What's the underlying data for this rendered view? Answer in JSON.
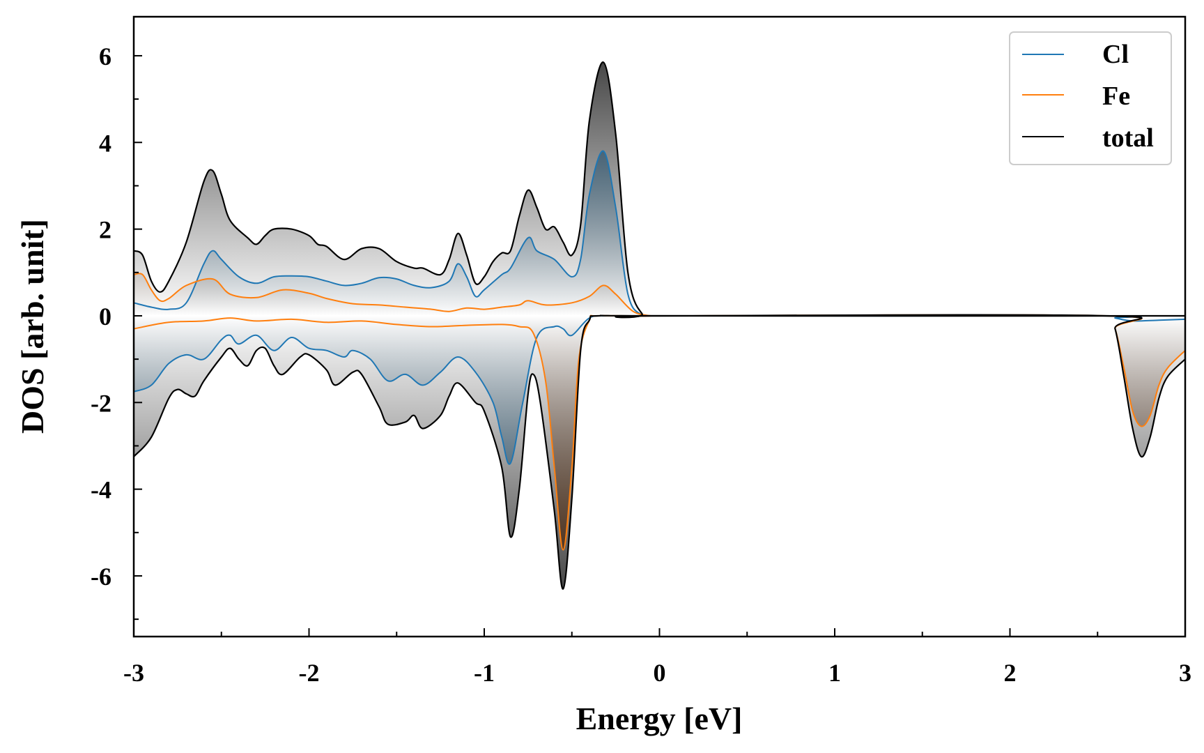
{
  "chart_data": {
    "type": "line",
    "title": "",
    "xlabel": "Energy [eV]",
    "ylabel": "DOS [arb. unit]",
    "xlim": [
      -3,
      3
    ],
    "ylim": [
      -7.4,
      6.9
    ],
    "x_ticks": [
      -3,
      -2,
      -1,
      0,
      1,
      2,
      3
    ],
    "x_tick_labels": [
      "-3",
      "-2",
      "-1",
      "0",
      "1",
      "2",
      "3"
    ],
    "y_ticks": [
      6,
      4,
      2,
      0,
      -2,
      -4,
      -6
    ],
    "y_tick_labels": [
      "6",
      "4",
      "2",
      "0",
      "-2",
      "-4",
      "-6"
    ],
    "grid": false,
    "legend_position": "top-right",
    "series": [
      {
        "name": "Cl",
        "color": "#1f77b4",
        "fill_color": "#0e4468",
        "up": [
          [
            -3,
            0.3
          ],
          [
            -2.9,
            0.2
          ],
          [
            -2.8,
            0.15
          ],
          [
            -2.7,
            0.3
          ],
          [
            -2.6,
            1.2
          ],
          [
            -2.55,
            1.5
          ],
          [
            -2.5,
            1.3
          ],
          [
            -2.4,
            0.9
          ],
          [
            -2.3,
            0.75
          ],
          [
            -2.2,
            0.9
          ],
          [
            -2.1,
            0.92
          ],
          [
            -2.0,
            0.9
          ],
          [
            -1.9,
            0.8
          ],
          [
            -1.8,
            0.7
          ],
          [
            -1.7,
            0.75
          ],
          [
            -1.6,
            0.88
          ],
          [
            -1.5,
            0.85
          ],
          [
            -1.4,
            0.7
          ],
          [
            -1.3,
            0.65
          ],
          [
            -1.2,
            0.8
          ],
          [
            -1.15,
            1.2
          ],
          [
            -1.1,
            0.9
          ],
          [
            -1.05,
            0.45
          ],
          [
            -1.0,
            0.6
          ],
          [
            -0.9,
            0.95
          ],
          [
            -0.85,
            1.1
          ],
          [
            -0.75,
            1.8
          ],
          [
            -0.7,
            1.5
          ],
          [
            -0.6,
            1.3
          ],
          [
            -0.5,
            0.9
          ],
          [
            -0.45,
            1.3
          ],
          [
            -0.4,
            2.8
          ],
          [
            -0.32,
            3.8
          ],
          [
            -0.25,
            2.5
          ],
          [
            -0.18,
            0.5
          ],
          [
            -0.1,
            0.02
          ],
          [
            0,
            0
          ],
          [
            2.6,
            0
          ],
          [
            3,
            0
          ]
        ],
        "down": [
          [
            -3,
            -1.75
          ],
          [
            -2.9,
            -1.6
          ],
          [
            -2.8,
            -1.1
          ],
          [
            -2.7,
            -0.9
          ],
          [
            -2.6,
            -1.0
          ],
          [
            -2.5,
            -0.55
          ],
          [
            -2.45,
            -0.45
          ],
          [
            -2.4,
            -0.65
          ],
          [
            -2.3,
            -0.45
          ],
          [
            -2.2,
            -0.8
          ],
          [
            -2.1,
            -0.5
          ],
          [
            -2.0,
            -0.75
          ],
          [
            -1.9,
            -0.8
          ],
          [
            -1.8,
            -0.95
          ],
          [
            -1.75,
            -0.8
          ],
          [
            -1.65,
            -1.0
          ],
          [
            -1.55,
            -1.5
          ],
          [
            -1.45,
            -1.35
          ],
          [
            -1.35,
            -1.6
          ],
          [
            -1.25,
            -1.3
          ],
          [
            -1.15,
            -0.95
          ],
          [
            -1.05,
            -1.3
          ],
          [
            -0.95,
            -2.0
          ],
          [
            -0.9,
            -2.8
          ],
          [
            -0.85,
            -3.4
          ],
          [
            -0.78,
            -2.0
          ],
          [
            -0.7,
            -0.5
          ],
          [
            -0.6,
            -0.25
          ],
          [
            -0.55,
            -0.3
          ],
          [
            -0.5,
            -0.45
          ],
          [
            -0.4,
            -0.05
          ],
          [
            -0.3,
            0
          ],
          [
            0,
            0
          ],
          [
            2.55,
            0
          ],
          [
            2.6,
            -0.05
          ],
          [
            2.7,
            -0.12
          ],
          [
            2.85,
            -0.1
          ],
          [
            3,
            -0.08
          ]
        ]
      },
      {
        "name": "Fe",
        "color": "#ff7f0e",
        "fill_color": "#4a2408",
        "up": [
          [
            -3,
            0.95
          ],
          [
            -2.95,
            0.95
          ],
          [
            -2.9,
            0.6
          ],
          [
            -2.85,
            0.35
          ],
          [
            -2.8,
            0.4
          ],
          [
            -2.7,
            0.7
          ],
          [
            -2.55,
            0.85
          ],
          [
            -2.45,
            0.5
          ],
          [
            -2.3,
            0.42
          ],
          [
            -2.15,
            0.6
          ],
          [
            -2.0,
            0.52
          ],
          [
            -1.9,
            0.4
          ],
          [
            -1.75,
            0.28
          ],
          [
            -1.6,
            0.25
          ],
          [
            -1.45,
            0.2
          ],
          [
            -1.3,
            0.15
          ],
          [
            -1.2,
            0.1
          ],
          [
            -1.1,
            0.18
          ],
          [
            -1.0,
            0.15
          ],
          [
            -0.9,
            0.2
          ],
          [
            -0.8,
            0.25
          ],
          [
            -0.75,
            0.35
          ],
          [
            -0.65,
            0.25
          ],
          [
            -0.5,
            0.3
          ],
          [
            -0.4,
            0.45
          ],
          [
            -0.32,
            0.7
          ],
          [
            -0.25,
            0.5
          ],
          [
            -0.15,
            0.1
          ],
          [
            -0.05,
            0
          ],
          [
            0,
            0
          ],
          [
            3,
            0
          ]
        ],
        "down": [
          [
            -3,
            -0.3
          ],
          [
            -2.8,
            -0.15
          ],
          [
            -2.6,
            -0.12
          ],
          [
            -2.45,
            -0.05
          ],
          [
            -2.3,
            -0.12
          ],
          [
            -2.1,
            -0.08
          ],
          [
            -1.9,
            -0.15
          ],
          [
            -1.7,
            -0.12
          ],
          [
            -1.5,
            -0.2
          ],
          [
            -1.3,
            -0.25
          ],
          [
            -1.1,
            -0.22
          ],
          [
            -0.9,
            -0.2
          ],
          [
            -0.8,
            -0.25
          ],
          [
            -0.72,
            -0.4
          ],
          [
            -0.65,
            -1.5
          ],
          [
            -0.6,
            -3.5
          ],
          [
            -0.55,
            -5.4
          ],
          [
            -0.5,
            -3.5
          ],
          [
            -0.46,
            -1.0
          ],
          [
            -0.4,
            -0.1
          ],
          [
            -0.35,
            0
          ],
          [
            0,
            0
          ],
          [
            2.55,
            0
          ],
          [
            2.6,
            -0.3
          ],
          [
            2.65,
            -1.2
          ],
          [
            2.7,
            -2.2
          ],
          [
            2.75,
            -2.55
          ],
          [
            2.8,
            -2.3
          ],
          [
            2.85,
            -1.6
          ],
          [
            2.9,
            -1.2
          ],
          [
            3,
            -0.8
          ]
        ]
      },
      {
        "name": "total",
        "color": "#000000",
        "fill_color": "#000000",
        "up": [
          [
            -3,
            1.5
          ],
          [
            -2.95,
            1.4
          ],
          [
            -2.9,
            0.8
          ],
          [
            -2.85,
            0.55
          ],
          [
            -2.8,
            0.8
          ],
          [
            -2.7,
            1.7
          ],
          [
            -2.6,
            3.1
          ],
          [
            -2.55,
            3.35
          ],
          [
            -2.5,
            2.8
          ],
          [
            -2.45,
            2.2
          ],
          [
            -2.35,
            1.8
          ],
          [
            -2.3,
            1.65
          ],
          [
            -2.25,
            1.85
          ],
          [
            -2.2,
            2.0
          ],
          [
            -2.1,
            2.0
          ],
          [
            -2.0,
            1.85
          ],
          [
            -1.95,
            1.65
          ],
          [
            -1.9,
            1.6
          ],
          [
            -1.8,
            1.3
          ],
          [
            -1.7,
            1.55
          ],
          [
            -1.6,
            1.55
          ],
          [
            -1.5,
            1.25
          ],
          [
            -1.4,
            1.1
          ],
          [
            -1.35,
            1.1
          ],
          [
            -1.25,
            0.95
          ],
          [
            -1.2,
            1.3
          ],
          [
            -1.15,
            1.9
          ],
          [
            -1.1,
            1.4
          ],
          [
            -1.05,
            0.75
          ],
          [
            -1.0,
            0.9
          ],
          [
            -0.95,
            1.25
          ],
          [
            -0.9,
            1.45
          ],
          [
            -0.85,
            1.5
          ],
          [
            -0.8,
            2.3
          ],
          [
            -0.75,
            2.9
          ],
          [
            -0.7,
            2.5
          ],
          [
            -0.65,
            2.0
          ],
          [
            -0.6,
            2.05
          ],
          [
            -0.55,
            1.7
          ],
          [
            -0.5,
            1.4
          ],
          [
            -0.45,
            2.1
          ],
          [
            -0.4,
            4.5
          ],
          [
            -0.32,
            5.85
          ],
          [
            -0.25,
            4.2
          ],
          [
            -0.18,
            1.0
          ],
          [
            -0.1,
            0.05
          ],
          [
            0,
            0
          ],
          [
            3,
            0
          ]
        ],
        "down": [
          [
            -3,
            -3.25
          ],
          [
            -2.9,
            -2.8
          ],
          [
            -2.8,
            -1.9
          ],
          [
            -2.75,
            -1.7
          ],
          [
            -2.7,
            -1.8
          ],
          [
            -2.65,
            -1.85
          ],
          [
            -2.6,
            -1.5
          ],
          [
            -2.5,
            -0.95
          ],
          [
            -2.45,
            -0.75
          ],
          [
            -2.4,
            -1.0
          ],
          [
            -2.35,
            -1.15
          ],
          [
            -2.3,
            -0.8
          ],
          [
            -2.25,
            -0.75
          ],
          [
            -2.2,
            -1.15
          ],
          [
            -2.15,
            -1.35
          ],
          [
            -2.05,
            -0.95
          ],
          [
            -2.0,
            -0.9
          ],
          [
            -1.9,
            -1.25
          ],
          [
            -1.85,
            -1.6
          ],
          [
            -1.75,
            -1.3
          ],
          [
            -1.7,
            -1.35
          ],
          [
            -1.6,
            -2.1
          ],
          [
            -1.55,
            -2.5
          ],
          [
            -1.45,
            -2.45
          ],
          [
            -1.4,
            -2.3
          ],
          [
            -1.35,
            -2.6
          ],
          [
            -1.25,
            -2.3
          ],
          [
            -1.2,
            -1.85
          ],
          [
            -1.15,
            -1.55
          ],
          [
            -1.05,
            -2.0
          ],
          [
            -1.0,
            -2.2
          ],
          [
            -0.9,
            -3.5
          ],
          [
            -0.85,
            -5.1
          ],
          [
            -0.8,
            -4.0
          ],
          [
            -0.75,
            -1.8
          ],
          [
            -0.72,
            -1.35
          ],
          [
            -0.68,
            -2.0
          ],
          [
            -0.6,
            -4.5
          ],
          [
            -0.55,
            -6.3
          ],
          [
            -0.5,
            -4.2
          ],
          [
            -0.45,
            -0.8
          ],
          [
            -0.4,
            -0.1
          ],
          [
            -0.35,
            0
          ],
          [
            0,
            0
          ],
          [
            2.55,
            0
          ],
          [
            2.6,
            -0.3
          ],
          [
            2.65,
            -1.4
          ],
          [
            2.7,
            -2.6
          ],
          [
            2.75,
            -3.25
          ],
          [
            2.8,
            -2.8
          ],
          [
            2.85,
            -1.9
          ],
          [
            2.9,
            -1.4
          ],
          [
            3,
            -1.0
          ]
        ]
      }
    ]
  }
}
